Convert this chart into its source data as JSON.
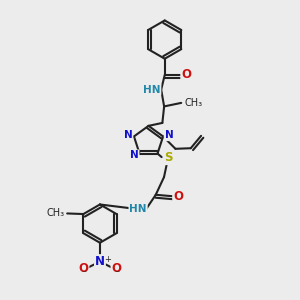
{
  "bg": "#ececec",
  "bond_color": "#222222",
  "bw": 1.5,
  "colors": {
    "N": "#1111cc",
    "O": "#cc1111",
    "S": "#aaaa00",
    "HN": "#2288aa",
    "C": "#222222"
  },
  "fs": 8.5,
  "fss": 7.0
}
